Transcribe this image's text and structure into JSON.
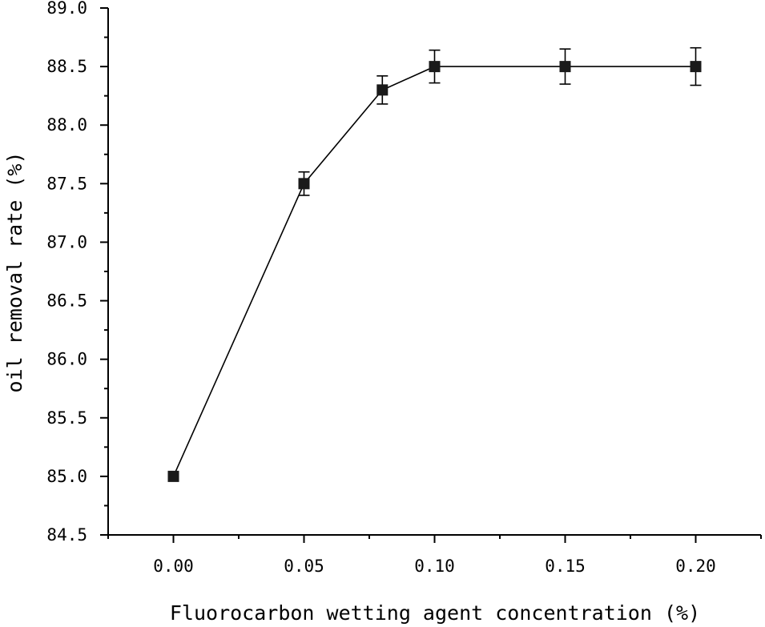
{
  "chart_data": {
    "type": "scatter",
    "title": "",
    "xlabel": "Fluorocarbon wetting agent concentration (%)",
    "ylabel": "oil removal rate (%)",
    "xlim": [
      -0.025,
      0.225
    ],
    "ylim": [
      84.5,
      89.0
    ],
    "x_ticks": [
      0.0,
      0.05,
      0.1,
      0.15,
      0.2
    ],
    "x_tick_labels": [
      "0.00",
      "0.05",
      "0.10",
      "0.15",
      "0.20"
    ],
    "y_ticks": [
      84.5,
      85.0,
      85.5,
      86.0,
      86.5,
      87.0,
      87.5,
      88.0,
      88.5,
      89.0
    ],
    "y_tick_labels": [
      "84.5",
      "85.0",
      "85.5",
      "86.0",
      "86.5",
      "87.0",
      "87.5",
      "88.0",
      "88.5",
      "89.0"
    ],
    "grid": false,
    "legend": "none",
    "series": [
      {
        "marker": "square",
        "connected": true,
        "color": "#1a1a1a",
        "x": [
          0.0,
          0.05,
          0.08,
          0.1,
          0.15,
          0.2
        ],
        "y": [
          85.0,
          87.5,
          88.3,
          88.5,
          88.5,
          88.5
        ],
        "error": [
          0,
          0.1,
          0.12,
          0.14,
          0.15,
          0.16
        ]
      }
    ]
  }
}
